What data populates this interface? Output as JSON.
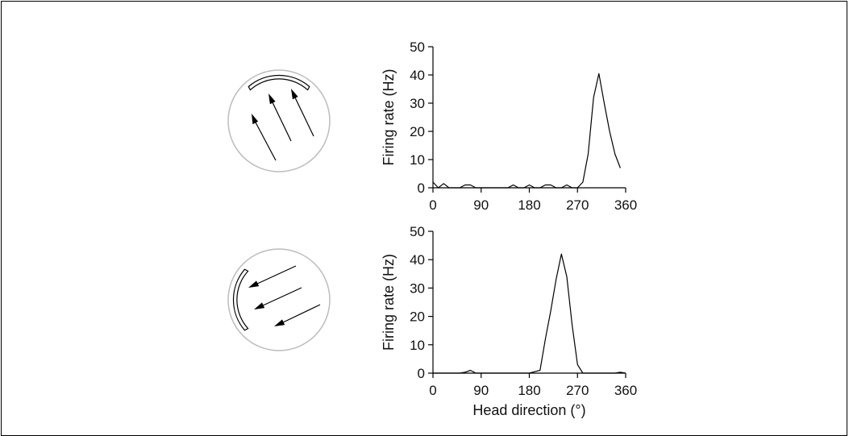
{
  "colors": {
    "line": "#000000",
    "circle": "#bdbdbd",
    "background": "#ffffff"
  },
  "chart_data": [
    {
      "type": "line",
      "panel": "top",
      "ylabel": "Firing rate (Hz)",
      "xlabel": "",
      "xlim": [
        0,
        360
      ],
      "ylim": [
        0,
        50
      ],
      "xticks": [
        0,
        90,
        180,
        270,
        360
      ],
      "yticks": [
        0,
        10,
        20,
        30,
        40,
        50
      ],
      "grid": false,
      "cue_card": "top",
      "arrow_direction": "up-left",
      "x": [
        0,
        10,
        20,
        30,
        40,
        50,
        60,
        70,
        80,
        90,
        100,
        110,
        120,
        130,
        140,
        150,
        160,
        170,
        180,
        190,
        200,
        210,
        220,
        230,
        240,
        250,
        260,
        270,
        280,
        290,
        300,
        310,
        320,
        330,
        340,
        350
      ],
      "y": [
        2,
        0,
        1.5,
        0,
        0,
        0,
        1,
        1,
        0,
        0,
        0,
        0,
        0,
        0,
        0,
        1,
        0,
        0,
        1,
        0,
        0,
        1,
        1,
        0,
        0,
        1,
        0,
        0,
        2,
        12,
        32,
        40.5,
        30,
        20,
        12,
        7
      ]
    },
    {
      "type": "line",
      "panel": "bottom",
      "ylabel": "Firing rate (Hz)",
      "xlabel": "Head direction (°)",
      "xlim": [
        0,
        360
      ],
      "ylim": [
        0,
        50
      ],
      "xticks": [
        0,
        90,
        180,
        270,
        360
      ],
      "yticks": [
        0,
        10,
        20,
        30,
        40,
        50
      ],
      "grid": false,
      "cue_card": "left",
      "arrow_direction": "down-left",
      "x": [
        0,
        10,
        20,
        30,
        40,
        50,
        60,
        70,
        80,
        90,
        100,
        110,
        120,
        130,
        140,
        150,
        160,
        170,
        180,
        190,
        200,
        210,
        220,
        230,
        240,
        250,
        260,
        270,
        280,
        290,
        300,
        310,
        320,
        330,
        340,
        350,
        360
      ],
      "y": [
        0,
        0,
        0,
        0,
        0,
        0,
        0.3,
        1,
        0,
        0,
        0,
        0,
        0,
        0,
        0,
        0,
        0,
        0,
        0,
        0.5,
        1,
        12,
        22,
        33,
        42,
        34,
        17,
        3,
        0,
        0,
        0,
        0,
        0,
        0,
        0,
        0.3,
        0
      ]
    }
  ]
}
